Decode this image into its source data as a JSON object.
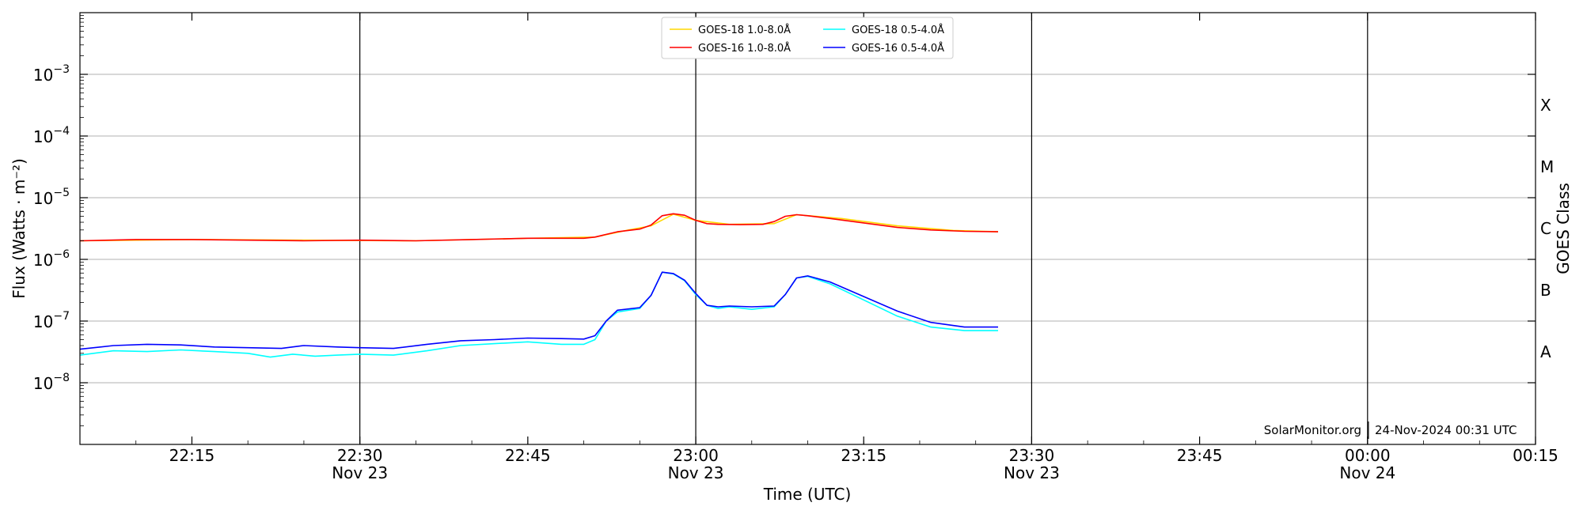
{
  "chart_data": {
    "type": "line",
    "xlabel": "Time (UTC)",
    "ylabel": "Flux (Watts · m⁻²)",
    "ylabel_right": "GOES Class",
    "yscale": "log",
    "ylim": [
      1e-09,
      0.01
    ],
    "xlim": [
      "2024-11-23 22:05",
      "2024-11-24 00:15"
    ],
    "grid": "horizontal",
    "legend_position": "top-center",
    "y_ticks": [
      {
        "value": 1e-08,
        "base": "10",
        "exp": "−8"
      },
      {
        "value": 1e-07,
        "base": "10",
        "exp": "−7"
      },
      {
        "value": 1e-06,
        "base": "10",
        "exp": "−6"
      },
      {
        "value": 1e-05,
        "base": "10",
        "exp": "−5"
      },
      {
        "value": 0.0001,
        "base": "10",
        "exp": "−4"
      },
      {
        "value": 0.001,
        "base": "10",
        "exp": "−3"
      }
    ],
    "x_ticks": [
      {
        "time": "2024-11-23 22:15",
        "label": "22:15",
        "date": ""
      },
      {
        "time": "2024-11-23 22:30",
        "label": "22:30",
        "date": "Nov 23"
      },
      {
        "time": "2024-11-23 22:45",
        "label": "22:45",
        "date": ""
      },
      {
        "time": "2024-11-23 23:00",
        "label": "23:00",
        "date": "Nov 23"
      },
      {
        "time": "2024-11-23 23:15",
        "label": "23:15",
        "date": ""
      },
      {
        "time": "2024-11-23 23:30",
        "label": "23:30",
        "date": "Nov 23"
      },
      {
        "time": "2024-11-23 23:45",
        "label": "23:45",
        "date": ""
      },
      {
        "time": "2024-11-24 00:00",
        "label": "00:00",
        "date": "Nov 24"
      },
      {
        "time": "2024-11-24 00:15",
        "label": "00:15",
        "date": ""
      }
    ],
    "vlines": [
      "2024-11-23 22:30",
      "2024-11-23 23:00",
      "2024-11-23 23:30",
      "2024-11-24 00:00"
    ],
    "goes_classes": [
      {
        "label": "A",
        "value": 3.16e-08
      },
      {
        "label": "B",
        "value": 3.16e-07
      },
      {
        "label": "C",
        "value": 3.16e-06
      },
      {
        "label": "M",
        "value": 3.16e-05
      },
      {
        "label": "X",
        "value": 0.000316
      }
    ],
    "legend": [
      {
        "name": "GOES-18 1.0-8.0Å",
        "color": "#ffd700"
      },
      {
        "name": "GOES-18 0.5-4.0Å",
        "color": "#00ffff"
      },
      {
        "name": "GOES-16 1.0-8.0Å",
        "color": "#ff0000"
      },
      {
        "name": "GOES-16 0.5-4.0Å",
        "color": "#0000ff"
      }
    ],
    "credit_source": "SolarMonitor.org",
    "credit_time": "24-Nov-2024 00:31 UTC",
    "series": [
      {
        "name": "GOES-18 1.0-8.0Å",
        "color": "#ffd700",
        "times": [
          "2024-11-23 22:05",
          "2024-11-23 22:15",
          "2024-11-23 22:25",
          "2024-11-23 22:35",
          "2024-11-23 22:45",
          "2024-11-23 22:51",
          "2024-11-23 22:54",
          "2024-11-23 22:56",
          "2024-11-23 22:58",
          "2024-11-23 23:00",
          "2024-11-23 23:03",
          "2024-11-23 23:07",
          "2024-11-23 23:09",
          "2024-11-23 23:13",
          "2024-11-23 23:18",
          "2024-11-23 23:23",
          "2024-11-23 23:27"
        ],
        "values": [
          2e-06,
          2.1e-06,
          2.05e-06,
          2e-06,
          2.2e-06,
          2.3e-06,
          3e-06,
          3.5e-06,
          5.4e-06,
          4.3e-06,
          3.7e-06,
          3.8e-06,
          5.3e-06,
          4.6e-06,
          3.5e-06,
          2.95e-06,
          2.8e-06
        ]
      },
      {
        "name": "GOES-16 1.0-8.0Å",
        "color": "#ff0000",
        "times": [
          "2024-11-23 22:05",
          "2024-11-23 22:10",
          "2024-11-23 22:15",
          "2024-11-23 22:20",
          "2024-11-23 22:25",
          "2024-11-23 22:30",
          "2024-11-23 22:35",
          "2024-11-23 22:40",
          "2024-11-23 22:45",
          "2024-11-23 22:50",
          "2024-11-23 22:51",
          "2024-11-23 22:53",
          "2024-11-23 22:55",
          "2024-11-23 22:56",
          "2024-11-23 22:57",
          "2024-11-23 22:58",
          "2024-11-23 22:59",
          "2024-11-23 23:00",
          "2024-11-23 23:01",
          "2024-11-23 23:02",
          "2024-11-23 23:04",
          "2024-11-23 23:06",
          "2024-11-23 23:07",
          "2024-11-23 23:08",
          "2024-11-23 23:09",
          "2024-11-23 23:10",
          "2024-11-23 23:12",
          "2024-11-23 23:15",
          "2024-11-23 23:18",
          "2024-11-23 23:21",
          "2024-11-23 23:24",
          "2024-11-23 23:27"
        ],
        "values": [
          2e-06,
          2.1e-06,
          2.1e-06,
          2.05e-06,
          2e-06,
          2.05e-06,
          2e-06,
          2.1e-06,
          2.2e-06,
          2.2e-06,
          2.3e-06,
          2.8e-06,
          3.1e-06,
          3.6e-06,
          5.1e-06,
          5.5e-06,
          5.2e-06,
          4.3e-06,
          3.8e-06,
          3.7e-06,
          3.65e-06,
          3.7e-06,
          4.1e-06,
          5e-06,
          5.3e-06,
          5.1e-06,
          4.6e-06,
          3.9e-06,
          3.3e-06,
          3e-06,
          2.85e-06,
          2.8e-06
        ]
      },
      {
        "name": "GOES-18 0.5-4.0Å",
        "color": "#00ffff",
        "times": [
          "2024-11-23 22:05",
          "2024-11-23 22:08",
          "2024-11-23 22:11",
          "2024-11-23 22:14",
          "2024-11-23 22:17",
          "2024-11-23 22:20",
          "2024-11-23 22:22",
          "2024-11-23 22:24",
          "2024-11-23 22:26",
          "2024-11-23 22:28",
          "2024-11-23 22:30",
          "2024-11-23 22:33",
          "2024-11-23 22:36",
          "2024-11-23 22:39",
          "2024-11-23 22:42",
          "2024-11-23 22:45",
          "2024-11-23 22:48",
          "2024-11-23 22:50",
          "2024-11-23 22:51",
          "2024-11-23 22:52",
          "2024-11-23 22:53",
          "2024-11-23 22:55",
          "2024-11-23 22:56",
          "2024-11-23 22:57",
          "2024-11-23 22:58",
          "2024-11-23 22:59",
          "2024-11-23 23:00",
          "2024-11-23 23:01",
          "2024-11-23 23:02",
          "2024-11-23 23:03",
          "2024-11-23 23:05",
          "2024-11-23 23:07",
          "2024-11-23 23:08",
          "2024-11-23 23:09",
          "2024-11-23 23:10",
          "2024-11-23 23:12",
          "2024-11-23 23:15",
          "2024-11-23 23:18",
          "2024-11-23 23:21",
          "2024-11-23 23:24",
          "2024-11-23 23:27"
        ],
        "values": [
          2.8e-08,
          3.3e-08,
          3.2e-08,
          3.4e-08,
          3.2e-08,
          3e-08,
          2.6e-08,
          2.9e-08,
          2.7e-08,
          2.8e-08,
          2.9e-08,
          2.8e-08,
          3.3e-08,
          4e-08,
          4.3e-08,
          4.6e-08,
          4.2e-08,
          4.2e-08,
          5e-08,
          1e-07,
          1.4e-07,
          1.6e-07,
          2.6e-07,
          6.2e-07,
          5.8e-07,
          4.5e-07,
          2.7e-07,
          1.8e-07,
          1.6e-07,
          1.7e-07,
          1.55e-07,
          1.7e-07,
          2.7e-07,
          5e-07,
          5.3e-07,
          4e-07,
          2.2e-07,
          1.2e-07,
          8e-08,
          7e-08,
          7e-08
        ]
      },
      {
        "name": "GOES-16 0.5-4.0Å",
        "color": "#0000ff",
        "times": [
          "2024-11-23 22:05",
          "2024-11-23 22:08",
          "2024-11-23 22:11",
          "2024-11-23 22:14",
          "2024-11-23 22:17",
          "2024-11-23 22:20",
          "2024-11-23 22:23",
          "2024-11-23 22:25",
          "2024-11-23 22:28",
          "2024-11-23 22:30",
          "2024-11-23 22:33",
          "2024-11-23 22:36",
          "2024-11-23 22:39",
          "2024-11-23 22:42",
          "2024-11-23 22:45",
          "2024-11-23 22:48",
          "2024-11-23 22:50",
          "2024-11-23 22:51",
          "2024-11-23 22:52",
          "2024-11-23 22:53",
          "2024-11-23 22:55",
          "2024-11-23 22:56",
          "2024-11-23 22:57",
          "2024-11-23 22:58",
          "2024-11-23 22:59",
          "2024-11-23 23:00",
          "2024-11-23 23:01",
          "2024-11-23 23:02",
          "2024-11-23 23:03",
          "2024-11-23 23:05",
          "2024-11-23 23:07",
          "2024-11-23 23:08",
          "2024-11-23 23:09",
          "2024-11-23 23:10",
          "2024-11-23 23:12",
          "2024-11-23 23:15",
          "2024-11-23 23:18",
          "2024-11-23 23:21",
          "2024-11-23 23:24",
          "2024-11-23 23:27"
        ],
        "values": [
          3.5e-08,
          4e-08,
          4.2e-08,
          4.1e-08,
          3.8e-08,
          3.7e-08,
          3.6e-08,
          4e-08,
          3.8e-08,
          3.7e-08,
          3.6e-08,
          4.2e-08,
          4.8e-08,
          5e-08,
          5.3e-08,
          5.2e-08,
          5.1e-08,
          5.8e-08,
          1e-07,
          1.5e-07,
          1.65e-07,
          2.6e-07,
          6.2e-07,
          5.9e-07,
          4.6e-07,
          2.8e-07,
          1.8e-07,
          1.7e-07,
          1.75e-07,
          1.7e-07,
          1.75e-07,
          2.7e-07,
          5e-07,
          5.4e-07,
          4.3e-07,
          2.5e-07,
          1.45e-07,
          9.5e-08,
          8e-08,
          8e-08
        ]
      }
    ]
  }
}
